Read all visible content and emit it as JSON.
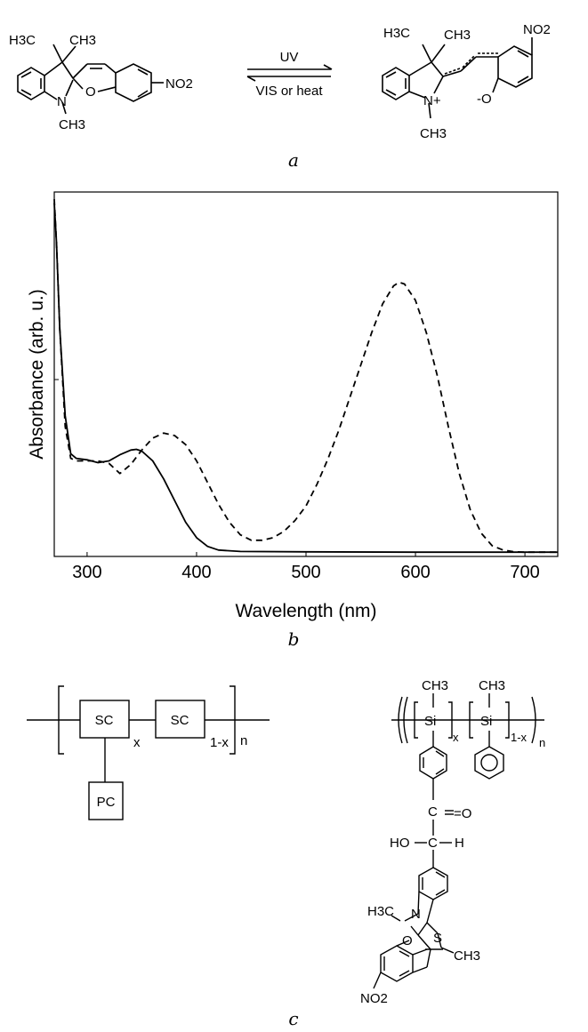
{
  "panel_a": {
    "caption": "a",
    "arrow_forward_label": "UV",
    "arrow_reverse_label": "VIS or heat",
    "left_molecule": {
      "groups": [
        "H3C",
        "CH3",
        "N",
        "CH3",
        "O",
        "NO2"
      ]
    },
    "right_molecule": {
      "groups": [
        "H3C",
        "CH3",
        "NO2",
        "N+",
        "CH3",
        "-O"
      ]
    }
  },
  "panel_b": {
    "caption": "b",
    "chart_data": {
      "type": "line",
      "xlabel": "Wavelength (nm)",
      "ylabel": "Absorbance (arb. u.)",
      "xlim": [
        270,
        730
      ],
      "ylim": [
        0,
        1
      ],
      "xticks": [
        300,
        400,
        500,
        600,
        700
      ],
      "grid": false,
      "series": [
        {
          "style": "solid",
          "x": [
            270,
            272,
            275,
            280,
            285,
            290,
            300,
            310,
            320,
            330,
            340,
            345,
            350,
            360,
            370,
            380,
            390,
            400,
            410,
            420,
            440,
            500,
            600,
            700,
            730
          ],
          "y": [
            0.97,
            0.86,
            0.62,
            0.38,
            0.275,
            0.262,
            0.258,
            0.25,
            0.255,
            0.272,
            0.285,
            0.287,
            0.282,
            0.255,
            0.205,
            0.145,
            0.085,
            0.042,
            0.018,
            0.008,
            0.004,
            0.003,
            0.002,
            0.002,
            0.002
          ]
        },
        {
          "style": "dashed",
          "x": [
            270,
            272,
            275,
            280,
            285,
            290,
            300,
            310,
            320,
            330,
            340,
            350,
            360,
            370,
            380,
            390,
            400,
            410,
            420,
            430,
            440,
            450,
            460,
            470,
            480,
            490,
            500,
            510,
            520,
            530,
            540,
            550,
            560,
            570,
            580,
            585,
            590,
            600,
            610,
            620,
            630,
            640,
            650,
            660,
            670,
            680,
            690,
            700,
            730
          ],
          "y": [
            0.98,
            0.86,
            0.62,
            0.35,
            0.262,
            0.255,
            0.255,
            0.255,
            0.248,
            0.22,
            0.245,
            0.285,
            0.318,
            0.332,
            0.325,
            0.3,
            0.255,
            0.195,
            0.135,
            0.085,
            0.05,
            0.035,
            0.035,
            0.042,
            0.06,
            0.09,
            0.13,
            0.19,
            0.26,
            0.34,
            0.43,
            0.52,
            0.61,
            0.69,
            0.74,
            0.75,
            0.745,
            0.7,
            0.61,
            0.49,
            0.35,
            0.22,
            0.12,
            0.055,
            0.02,
            0.008,
            0.003,
            0.002,
            0.002
          ]
        }
      ]
    }
  },
  "panel_c": {
    "caption": "c",
    "schematic": {
      "box1": "SC",
      "box2": "SC",
      "box3": "PC",
      "sub_x": "x",
      "sub_1x": "1-x",
      "sub_n": "n"
    },
    "polymer": {
      "labels": [
        "CH3",
        "Si",
        "x",
        "CH3",
        "Si",
        "1-x",
        "n",
        "C",
        "=O",
        "HO",
        "C",
        "H",
        "H3C",
        "N",
        "S",
        "O",
        "CH3",
        "NO2"
      ]
    }
  }
}
